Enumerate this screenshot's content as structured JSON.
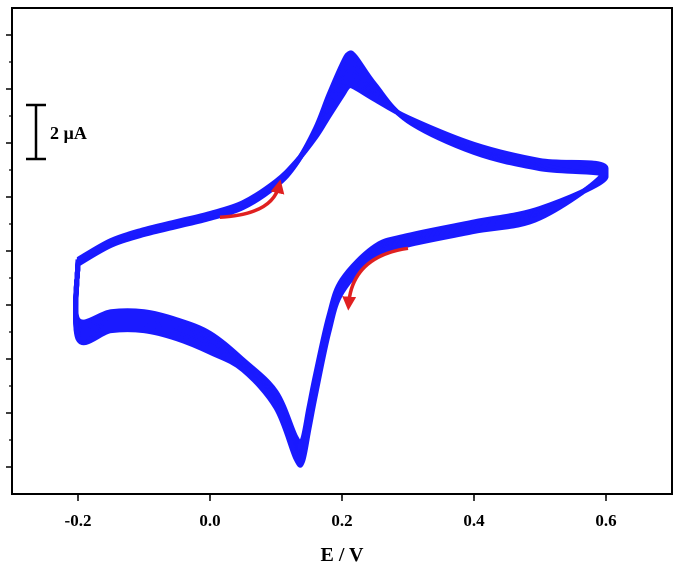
{
  "chart_data": {
    "type": "line",
    "title": "",
    "xlabel": "E / V",
    "ylabel": "",
    "xlim": [
      -0.3,
      0.7
    ],
    "ylim": [
      -9.0,
      9.0
    ],
    "x_ticks": [
      -0.2,
      0.0,
      0.2,
      0.4,
      0.6
    ],
    "x_tick_labels": [
      "-0.2",
      "0.0",
      "0.2",
      "0.4",
      "0.6"
    ],
    "y_tick_count": 9,
    "y_tick_labels_shown": false,
    "y_units": "µA",
    "scale_bar": {
      "label": "2 µA",
      "value": 2
    },
    "grid": false,
    "legend": "none",
    "series_color": "#1a1aff",
    "arrow_color": "#e02020",
    "cycles": 12,
    "anodic_peak": {
      "E": 0.21,
      "i_first": 7.4,
      "i_last": 6.2
    },
    "cathodic_peak": {
      "E": 0.14,
      "i_first": -6.8,
      "i_last": -7.6
    },
    "forward_scan": {
      "x": [
        -0.2,
        -0.15,
        -0.1,
        -0.05,
        0.0,
        0.05,
        0.1,
        0.13,
        0.16,
        0.18,
        0.2,
        0.21,
        0.22,
        0.25,
        0.3,
        0.4,
        0.5,
        0.6
      ],
      "y": [
        -0.4,
        0.3,
        0.7,
        1.0,
        1.3,
        1.7,
        2.5,
        3.3,
        4.6,
        5.8,
        6.9,
        7.3,
        7.2,
        6.2,
        4.9,
        3.8,
        3.2,
        2.9
      ]
    },
    "reverse_scan": {
      "x": [
        0.6,
        0.5,
        0.4,
        0.3,
        0.25,
        0.2,
        0.18,
        0.16,
        0.15,
        0.14,
        0.13,
        0.1,
        0.05,
        0.0,
        -0.05,
        -0.1,
        -0.15,
        -0.2
      ],
      "y": [
        2.1,
        1.4,
        0.9,
        0.4,
        0.0,
        -1.2,
        -2.5,
        -4.6,
        -5.8,
        -7.0,
        -6.9,
        -5.3,
        -4.2,
        -3.4,
        -2.9,
        -2.6,
        -2.6,
        -2.9
      ]
    },
    "arrows": [
      {
        "direction": "anodic",
        "near_E": 0.1,
        "near_i": 1.7
      },
      {
        "direction": "cathodic",
        "near_E": 0.27,
        "near_i": -0.4
      }
    ]
  }
}
